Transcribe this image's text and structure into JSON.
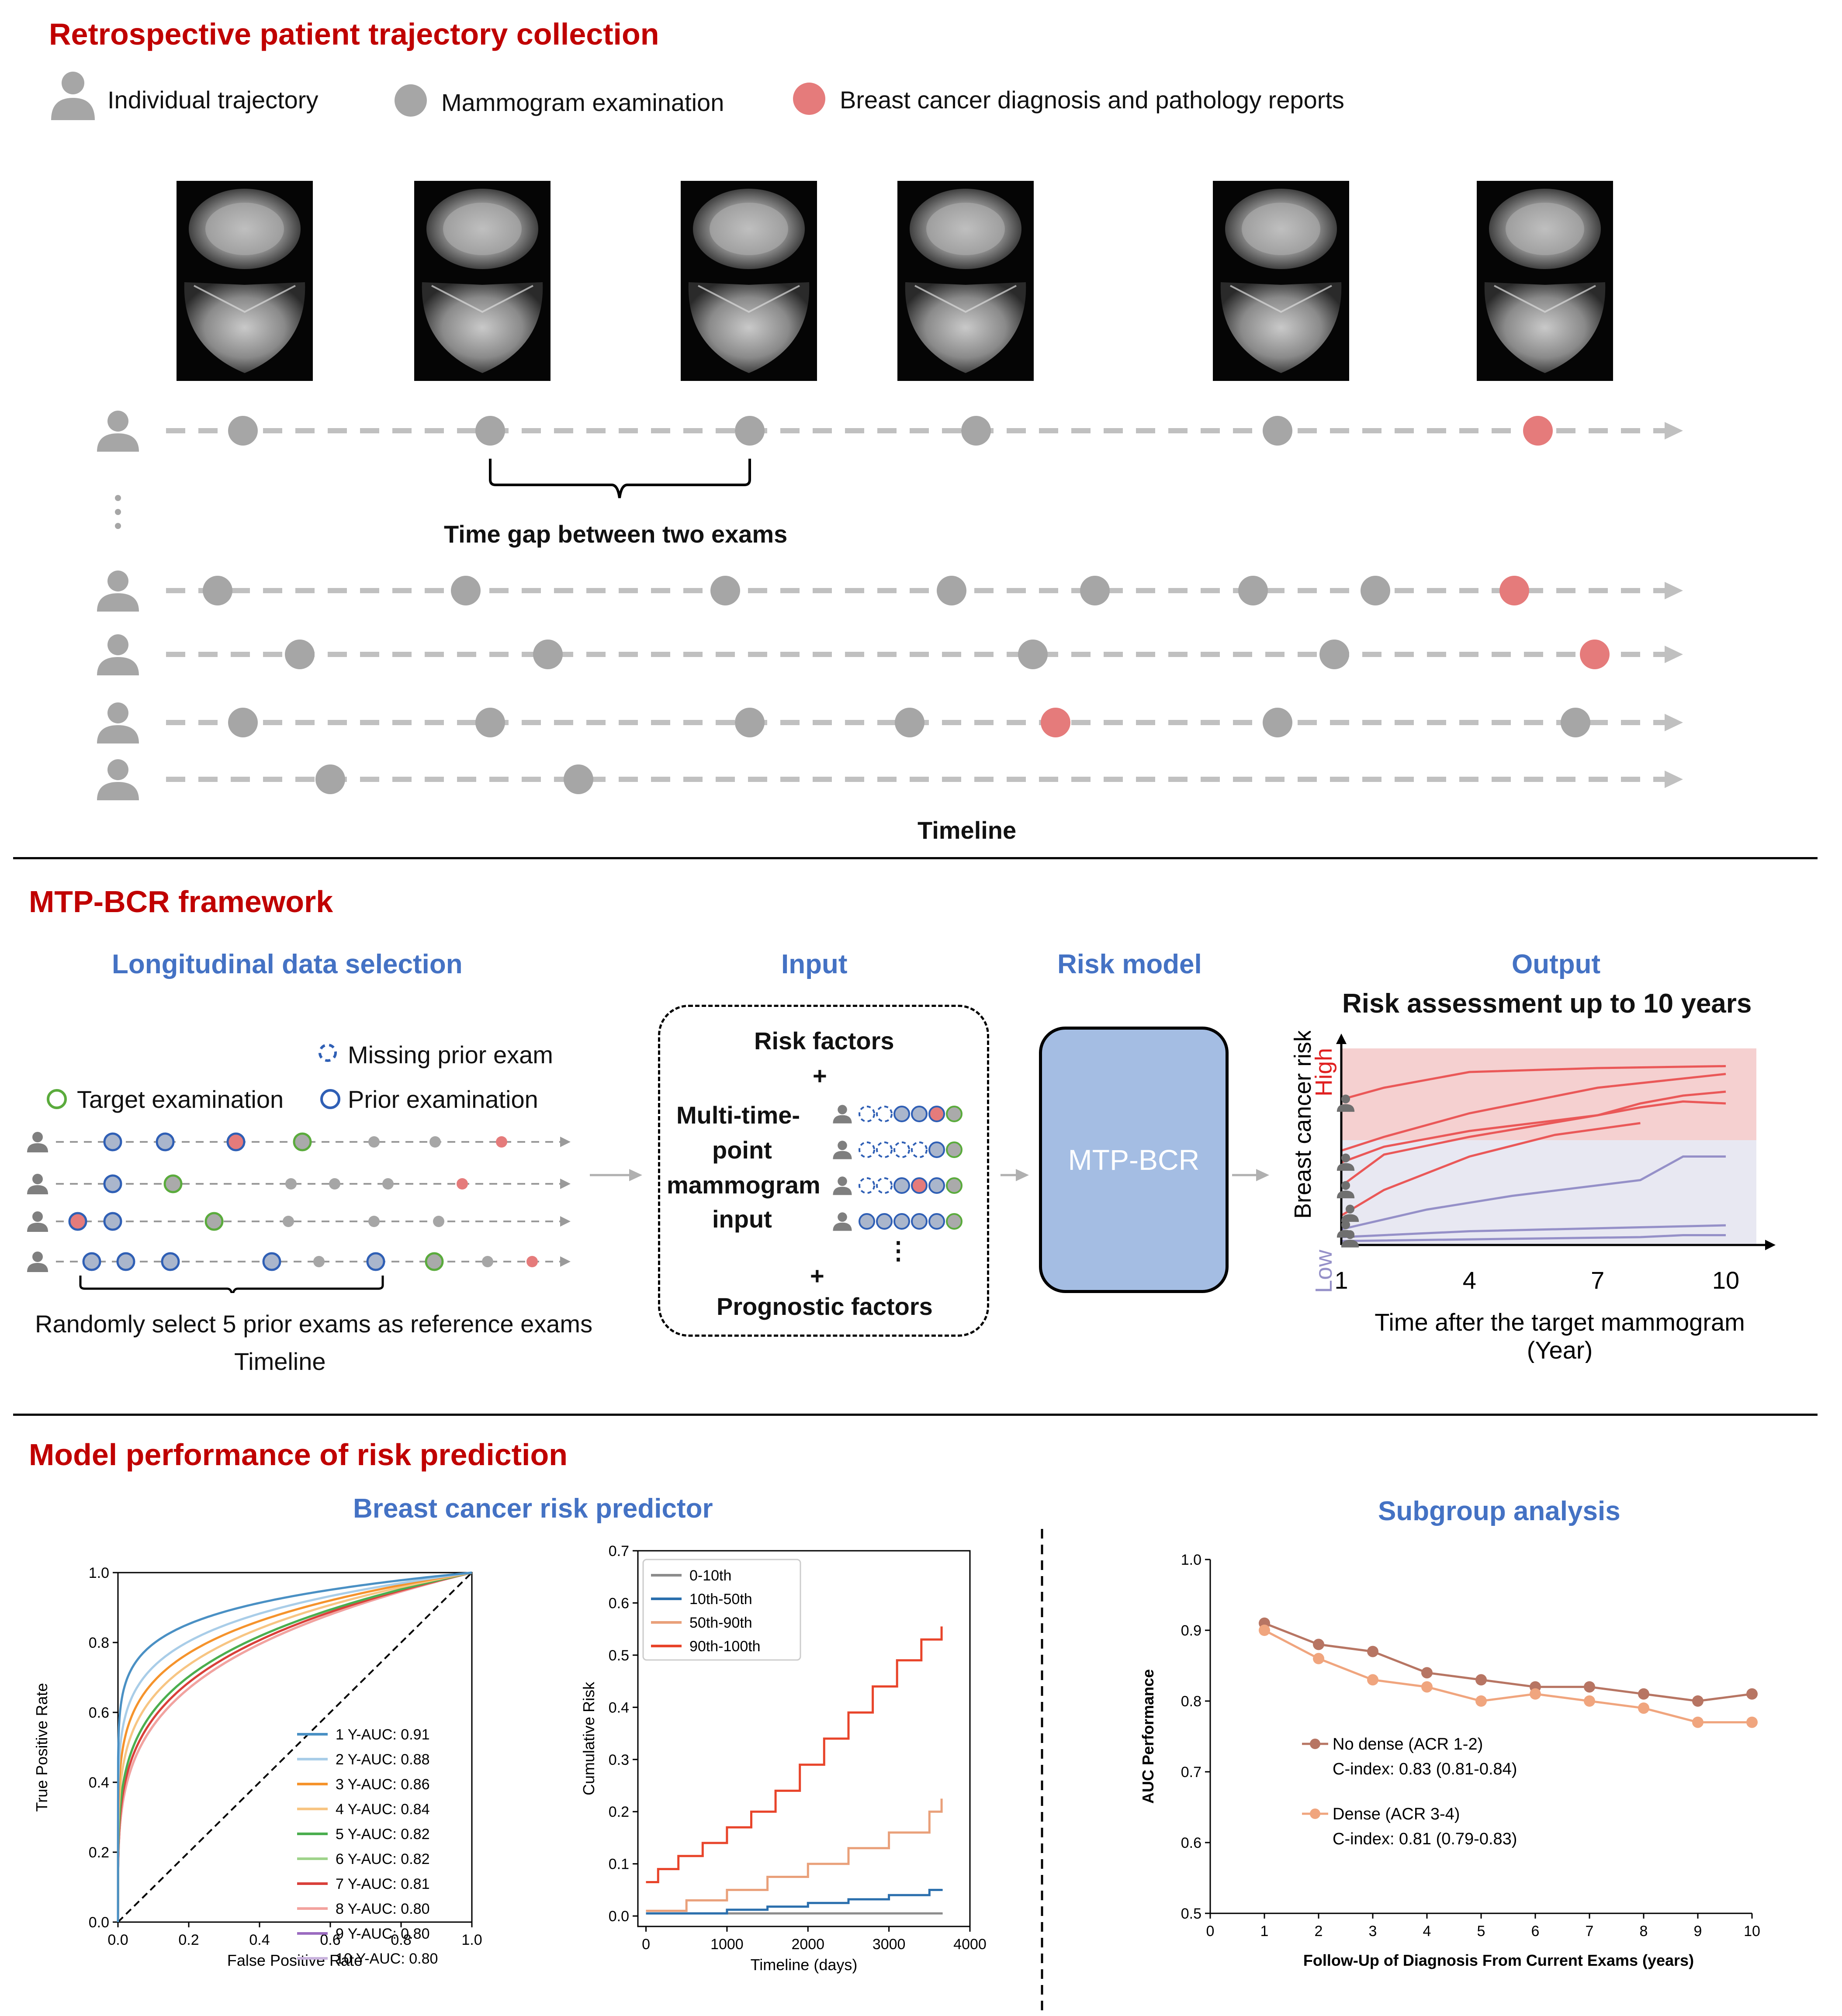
{
  "section1": {
    "title": "Retrospective patient trajectory collection",
    "legend": {
      "individual": "Individual trajectory",
      "mammogram": "Mammogram examination",
      "diagnosis": "Breast cancer diagnosis and pathology reports"
    },
    "gap_label": "Time gap between two exams",
    "timeline_label": "Timeline",
    "colors": {
      "exam": "#a6a6a6",
      "diagnosis": "#e57b7b",
      "person": "#a6a6a6"
    }
  },
  "section2": {
    "title": "MTP-BCR framework",
    "selection": {
      "heading": "Longitudinal data selection",
      "missing": "Missing prior exam",
      "target": "Target examination",
      "prior": "Prior examination",
      "random_note": "Randomly select 5 prior exams as reference exams",
      "timeline": "Timeline"
    },
    "input": {
      "heading": "Input",
      "risk_factors": "Risk factors",
      "plus1": "+",
      "multi_line1": "Multi-time-",
      "multi_line2": "point",
      "multi_line3": "mammogram",
      "multi_line4": "input",
      "ellipsis": "⋮",
      "plus2": "+",
      "prognostic": "Prognostic factors"
    },
    "model": {
      "heading": "Risk model",
      "name": "MTP-BCR"
    },
    "output": {
      "heading": "Output",
      "title": "Risk assessment up to 10 years",
      "ylabel": "Breast cancer risk",
      "high": "High",
      "low": "Low",
      "ticks": [
        "1",
        "4",
        "7",
        "10"
      ],
      "xlabel_line1": "Time after the target mammogram",
      "xlabel_line2": "(Year)"
    }
  },
  "section3": {
    "title": "Model performance of risk prediction",
    "predictor_heading": "Breast cancer risk predictor",
    "subgroup_heading": "Subgroup analysis"
  },
  "chart_data": [
    {
      "type": "line",
      "name": "ROC curves",
      "xlabel": "False Positive Rate",
      "ylabel": "True Positive Rate",
      "xlim": [
        0,
        1
      ],
      "ylim": [
        0,
        1
      ],
      "xticks": [
        "0.0",
        "0.2",
        "0.4",
        "0.6",
        "0.8",
        "1.0"
      ],
      "yticks": [
        "0.0",
        "0.2",
        "0.4",
        "0.6",
        "0.8",
        "1.0"
      ],
      "legend_position": "lower right",
      "diagonal": true,
      "series": [
        {
          "name": "1 Y-AUC: 0.91",
          "color": "#4a90c4",
          "auc": 0.91
        },
        {
          "name": "2 Y-AUC: 0.88",
          "color": "#a9cde8",
          "auc": 0.88
        },
        {
          "name": "3 Y-AUC: 0.86",
          "color": "#f5932c",
          "auc": 0.86
        },
        {
          "name": "4 Y-AUC: 0.84",
          "color": "#f7c583",
          "auc": 0.84
        },
        {
          "name": "5 Y-AUC: 0.82",
          "color": "#4bae4f",
          "auc": 0.82
        },
        {
          "name": "6 Y-AUC: 0.82",
          "color": "#9fd38b",
          "auc": 0.82
        },
        {
          "name": "7 Y-AUC: 0.81",
          "color": "#d9403a",
          "auc": 0.81
        },
        {
          "name": "8 Y-AUC: 0.80",
          "color": "#f3a39e",
          "auc": 0.8
        },
        {
          "name": "9 Y-AUC: 0.80",
          "color": "#9b6bc0",
          "auc": 0.8
        },
        {
          "name": "10 Y-AUC: 0.80",
          "color": "#c9b3dd",
          "auc": 0.8
        }
      ]
    },
    {
      "type": "line",
      "name": "Cumulative risk",
      "xlabel": "Timeline (days)",
      "ylabel": "Cumulative Risk",
      "xlim": [
        -100,
        4000
      ],
      "ylim": [
        -0.02,
        0.7
      ],
      "xticks": [
        0,
        1000,
        2000,
        3000,
        4000
      ],
      "yticks": [
        "0.0",
        "0.1",
        "0.2",
        "0.3",
        "0.4",
        "0.5",
        "0.6",
        "0.7"
      ],
      "legend_position": "upper left",
      "series": [
        {
          "name": "0-10th",
          "color": "#8c8c8c",
          "x": [
            0,
            3650
          ],
          "y": [
            0.005,
            0.007
          ]
        },
        {
          "name": "10th-50th",
          "color": "#2b6fad",
          "x": [
            0,
            1000,
            1500,
            2000,
            2500,
            3000,
            3500,
            3650
          ],
          "y": [
            0.005,
            0.012,
            0.018,
            0.025,
            0.032,
            0.04,
            0.05,
            0.052
          ]
        },
        {
          "name": "50th-90th",
          "color": "#e9a07a",
          "x": [
            0,
            500,
            1000,
            1500,
            2000,
            2500,
            3000,
            3500,
            3650
          ],
          "y": [
            0.01,
            0.03,
            0.05,
            0.075,
            0.1,
            0.13,
            0.16,
            0.2,
            0.225
          ]
        },
        {
          "name": "90th-100th",
          "color": "#e8442a",
          "x": [
            0,
            150,
            400,
            700,
            1000,
            1300,
            1600,
            1900,
            2200,
            2500,
            2800,
            3100,
            3400,
            3650
          ],
          "y": [
            0.065,
            0.09,
            0.115,
            0.14,
            0.17,
            0.2,
            0.24,
            0.29,
            0.34,
            0.39,
            0.44,
            0.49,
            0.53,
            0.555
          ]
        }
      ]
    },
    {
      "type": "line",
      "name": "Subgroup analysis",
      "xlabel": "Follow-Up of Diagnosis From Current Exams (years)",
      "ylabel": "AUC Performance",
      "xlim": [
        0,
        10
      ],
      "ylim": [
        0.5,
        1.0
      ],
      "xticks": [
        0,
        1,
        2,
        3,
        4,
        5,
        6,
        7,
        8,
        9,
        10
      ],
      "yticks": [
        "0.5",
        "0.6",
        "0.7",
        "0.8",
        "0.9",
        "1.0"
      ],
      "series": [
        {
          "name": "No dense (ACR 1-2)",
          "cindex": "C-index: 0.83 (0.81-0.84)",
          "color": "#b77563",
          "x": [
            1,
            2,
            3,
            4,
            5,
            6,
            7,
            8,
            9,
            10
          ],
          "y": [
            0.91,
            0.88,
            0.87,
            0.84,
            0.83,
            0.82,
            0.82,
            0.81,
            0.8,
            0.81
          ]
        },
        {
          "name": "Dense (ACR 3-4)",
          "cindex": "C-index: 0.81 (0.79-0.83)",
          "color": "#f0a57e",
          "x": [
            1,
            2,
            3,
            4,
            5,
            6,
            7,
            8,
            9,
            10
          ],
          "y": [
            0.9,
            0.86,
            0.83,
            0.82,
            0.8,
            0.81,
            0.8,
            0.79,
            0.77,
            0.77
          ]
        }
      ]
    }
  ]
}
